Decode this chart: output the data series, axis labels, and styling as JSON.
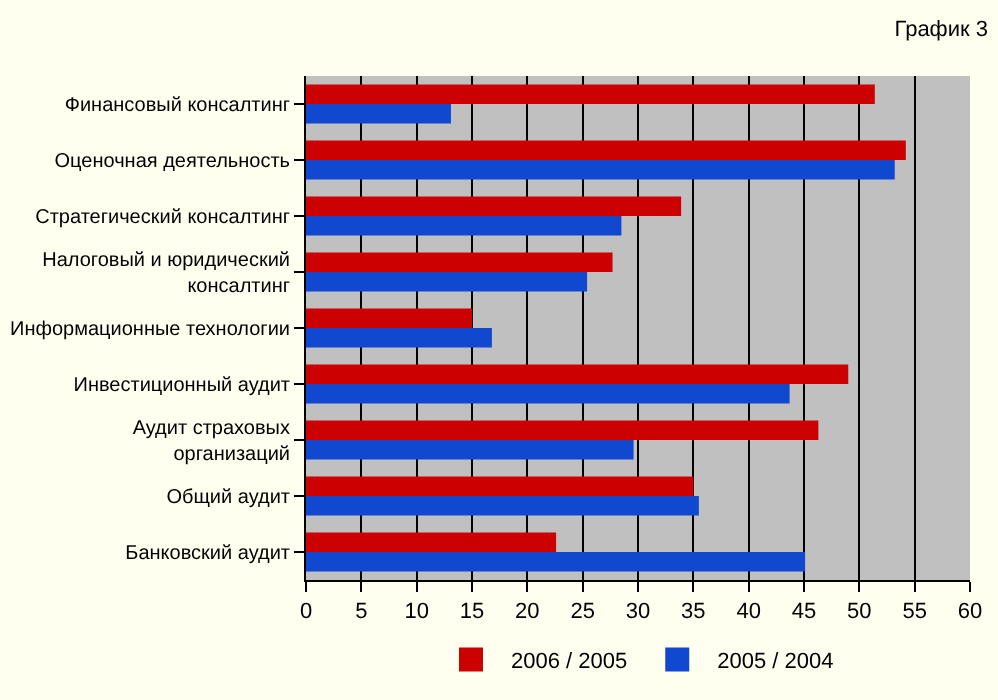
{
  "chart_data": {
    "type": "bar",
    "orientation": "horizontal",
    "title": "График 3",
    "categories": [
      "Финансовый консалтинг",
      "Оценочная деятельность",
      "Стратегический консалтинг",
      "Налоговый и юридический консалтинг",
      "Информационные технологии",
      "Инвестиционный аудит",
      "Аудит страховых организаций",
      "Общий аудит",
      "Банковский аудит"
    ],
    "series": [
      {
        "name": "2006 / 2005",
        "color": "#cc0000",
        "values": [
          51.4,
          54.2,
          33.9,
          27.7,
          15.0,
          49.0,
          46.3,
          35.0,
          22.6
        ]
      },
      {
        "name": "2005 / 2004",
        "color": "#1048d0",
        "values": [
          13.1,
          53.2,
          28.5,
          25.4,
          16.8,
          43.7,
          29.6,
          35.5,
          45.1
        ]
      }
    ],
    "xlim": [
      0,
      60
    ],
    "xticks": [
      0,
      5,
      10,
      15,
      20,
      25,
      30,
      35,
      40,
      45,
      50,
      55,
      60
    ],
    "grid": "x",
    "legend": "bottom"
  }
}
